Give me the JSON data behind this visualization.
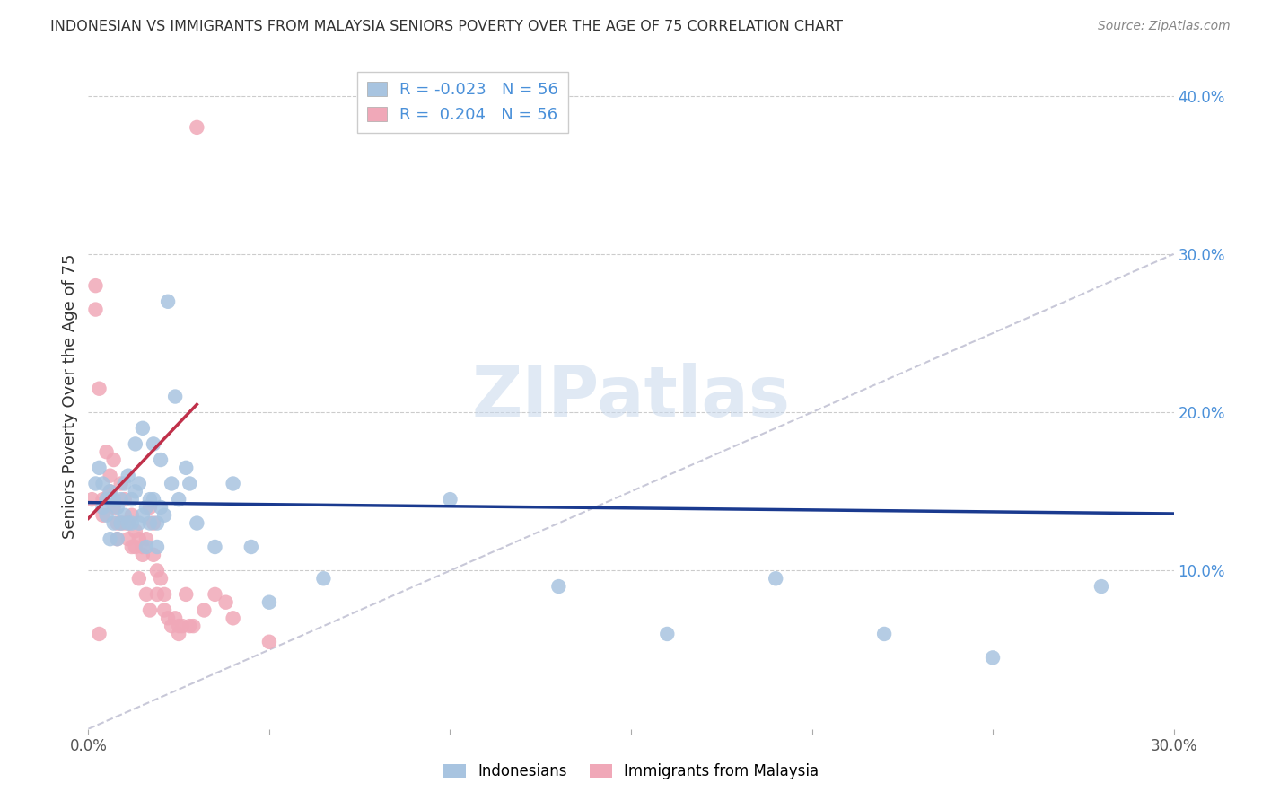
{
  "title": "INDONESIAN VS IMMIGRANTS FROM MALAYSIA SENIORS POVERTY OVER THE AGE OF 75 CORRELATION CHART",
  "source": "Source: ZipAtlas.com",
  "ylabel": "Seniors Poverty Over the Age of 75",
  "watermark": "ZIPatlas",
  "xlim": [
    0.0,
    0.3
  ],
  "ylim": [
    0.0,
    0.42
  ],
  "R_indonesian": -0.023,
  "N_indonesian": 56,
  "R_malaysia": 0.204,
  "N_malaysia": 56,
  "color_indonesian": "#a8c4e0",
  "color_malaysia": "#f0a8b8",
  "line_color_indonesian": "#1a3a8f",
  "line_color_malaysia": "#c0304a",
  "diag_line_color": "#c8c8d8",
  "indonesian_x": [
    0.002,
    0.003,
    0.004,
    0.004,
    0.005,
    0.005,
    0.006,
    0.006,
    0.007,
    0.007,
    0.008,
    0.008,
    0.009,
    0.009,
    0.01,
    0.01,
    0.011,
    0.011,
    0.012,
    0.012,
    0.013,
    0.013,
    0.014,
    0.014,
    0.015,
    0.015,
    0.016,
    0.016,
    0.017,
    0.017,
    0.018,
    0.018,
    0.019,
    0.019,
    0.02,
    0.02,
    0.021,
    0.022,
    0.023,
    0.024,
    0.025,
    0.027,
    0.028,
    0.03,
    0.035,
    0.04,
    0.045,
    0.05,
    0.065,
    0.1,
    0.13,
    0.16,
    0.19,
    0.22,
    0.25,
    0.28
  ],
  "indonesian_y": [
    0.155,
    0.165,
    0.14,
    0.155,
    0.135,
    0.145,
    0.15,
    0.12,
    0.13,
    0.145,
    0.14,
    0.12,
    0.145,
    0.13,
    0.155,
    0.135,
    0.16,
    0.13,
    0.145,
    0.13,
    0.18,
    0.15,
    0.155,
    0.13,
    0.135,
    0.19,
    0.14,
    0.115,
    0.145,
    0.13,
    0.18,
    0.145,
    0.13,
    0.115,
    0.17,
    0.14,
    0.135,
    0.27,
    0.155,
    0.21,
    0.145,
    0.165,
    0.155,
    0.13,
    0.115,
    0.155,
    0.115,
    0.08,
    0.095,
    0.145,
    0.09,
    0.06,
    0.095,
    0.06,
    0.045,
    0.09
  ],
  "malaysia_x": [
    0.001,
    0.002,
    0.002,
    0.003,
    0.003,
    0.004,
    0.004,
    0.005,
    0.005,
    0.006,
    0.006,
    0.007,
    0.007,
    0.007,
    0.008,
    0.008,
    0.009,
    0.009,
    0.01,
    0.01,
    0.011,
    0.011,
    0.012,
    0.012,
    0.013,
    0.013,
    0.014,
    0.014,
    0.015,
    0.015,
    0.016,
    0.016,
    0.017,
    0.017,
    0.018,
    0.018,
    0.019,
    0.019,
    0.02,
    0.021,
    0.021,
    0.022,
    0.023,
    0.024,
    0.025,
    0.025,
    0.026,
    0.027,
    0.028,
    0.029,
    0.03,
    0.032,
    0.035,
    0.038,
    0.04,
    0.05
  ],
  "malaysia_y": [
    0.145,
    0.28,
    0.265,
    0.215,
    0.06,
    0.145,
    0.135,
    0.175,
    0.145,
    0.16,
    0.15,
    0.14,
    0.145,
    0.17,
    0.13,
    0.12,
    0.13,
    0.155,
    0.13,
    0.145,
    0.13,
    0.12,
    0.135,
    0.115,
    0.115,
    0.125,
    0.12,
    0.095,
    0.115,
    0.11,
    0.12,
    0.085,
    0.075,
    0.14,
    0.13,
    0.11,
    0.1,
    0.085,
    0.095,
    0.085,
    0.075,
    0.07,
    0.065,
    0.07,
    0.065,
    0.06,
    0.065,
    0.085,
    0.065,
    0.065,
    0.38,
    0.075,
    0.085,
    0.08,
    0.07,
    0.055
  ],
  "ind_line_x0": 0.0,
  "ind_line_y0": 0.143,
  "ind_line_x1": 0.3,
  "ind_line_y1": 0.136,
  "mal_line_x0": 0.0,
  "mal_line_y0": 0.133,
  "mal_line_x1": 0.03,
  "mal_line_y1": 0.205
}
